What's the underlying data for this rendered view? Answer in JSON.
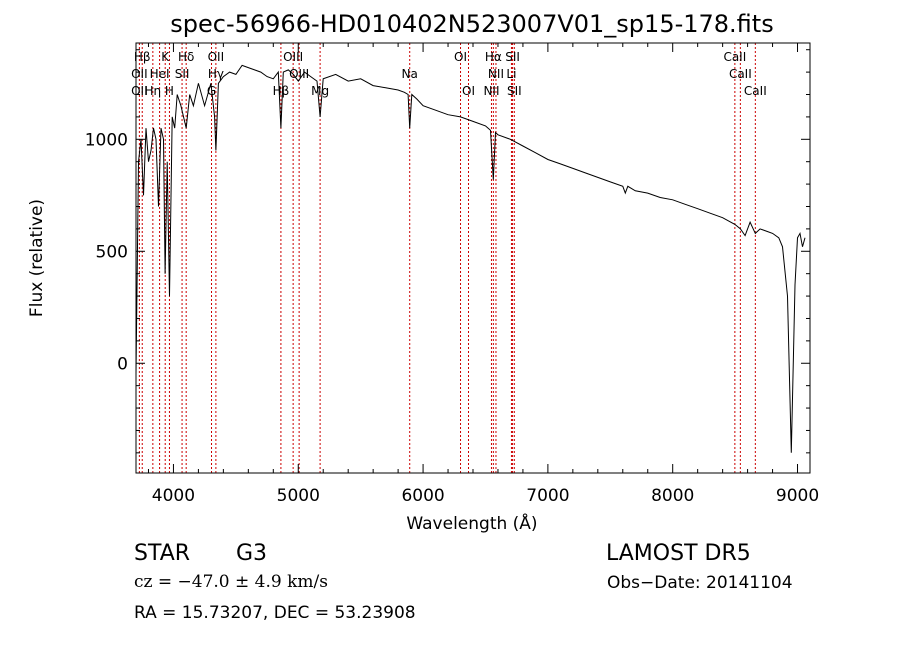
{
  "chart_data": {
    "type": "line",
    "title": "spec-56966-HD010402N523007V01_sp15-178.fits",
    "xlabel": "Wavelength (Å)",
    "ylabel": "Flux (relative)",
    "xlim": [
      3700,
      9100
    ],
    "ylim": [
      -490,
      1430
    ],
    "xticks": [
      "4000",
      "5000",
      "6000",
      "7000",
      "8000",
      "9000"
    ],
    "xtick_values": [
      4000,
      5000,
      6000,
      7000,
      8000,
      9000
    ],
    "yticks": [
      "0",
      "500",
      "1000"
    ],
    "ytick_values": [
      0,
      500,
      1000
    ],
    "grid": false,
    "series": [
      {
        "color": "#000000",
        "x": [
          3700,
          3720,
          3740,
          3760,
          3780,
          3800,
          3820,
          3840,
          3860,
          3880,
          3900,
          3920,
          3933,
          3950,
          3968,
          3990,
          4010,
          4030,
          4060,
          4102,
          4130,
          4160,
          4200,
          4250,
          4300,
          4330,
          4340,
          4360,
          4400,
          4450,
          4500,
          4550,
          4600,
          4650,
          4700,
          4750,
          4800,
          4840,
          4861,
          4880,
          4920,
          4960,
          5000,
          5050,
          5100,
          5150,
          5175,
          5200,
          5300,
          5400,
          5500,
          5600,
          5700,
          5800,
          5850,
          5880,
          5893,
          5910,
          5950,
          6000,
          6100,
          6200,
          6300,
          6400,
          6500,
          6540,
          6563,
          6580,
          6600,
          6700,
          6800,
          6900,
          7000,
          7100,
          7200,
          7300,
          7400,
          7500,
          7600,
          7620,
          7640,
          7700,
          7800,
          7900,
          8000,
          8100,
          8200,
          8300,
          8400,
          8498,
          8542,
          8580,
          8620,
          8662,
          8700,
          8750,
          8800,
          8850,
          8880,
          8920,
          8950,
          8980,
          9000,
          9020,
          9040,
          9060
        ],
        "y": [
          -50,
          900,
          1000,
          750,
          1050,
          900,
          950,
          1050,
          1000,
          700,
          1050,
          1000,
          400,
          900,
          300,
          1100,
          1050,
          1200,
          1150,
          1050,
          1200,
          1150,
          1250,
          1150,
          1250,
          1100,
          950,
          1250,
          1280,
          1300,
          1290,
          1330,
          1320,
          1310,
          1300,
          1280,
          1270,
          1300,
          1050,
          1300,
          1310,
          1290,
          1260,
          1300,
          1280,
          1260,
          1100,
          1270,
          1290,
          1260,
          1270,
          1240,
          1230,
          1220,
          1210,
          1200,
          1050,
          1200,
          1180,
          1150,
          1130,
          1110,
          1100,
          1080,
          1060,
          1040,
          820,
          1030,
          1020,
          1000,
          970,
          940,
          910,
          890,
          870,
          850,
          830,
          810,
          790,
          760,
          790,
          770,
          760,
          740,
          730,
          710,
          690,
          670,
          650,
          620,
          600,
          570,
          630,
          580,
          600,
          590,
          580,
          560,
          520,
          300,
          -400,
          350,
          560,
          580,
          520,
          560
        ]
      }
    ],
    "line_markers": [
      {
        "label": "Hβ",
        "x": 3750,
        "row": 0
      },
      {
        "label": "K",
        "x": 3934,
        "row": 0
      },
      {
        "label": "Hδ",
        "x": 4102,
        "row": 0
      },
      {
        "label": "OII",
        "x": 4340,
        "row": 0
      },
      {
        "label": "OIII",
        "x": 4959,
        "row": 0
      },
      {
        "label": "OI",
        "x": 6300,
        "row": 0
      },
      {
        "label": "Hα",
        "x": 6563,
        "row": 0
      },
      {
        "label": "SII",
        "x": 6717,
        "row": 0
      },
      {
        "label": "CaII",
        "x": 8498,
        "row": 0
      },
      {
        "label": "OII",
        "x": 3727,
        "row": 1
      },
      {
        "label": "HeI",
        "x": 3889,
        "row": 1
      },
      {
        "label": "SII",
        "x": 4069,
        "row": 1
      },
      {
        "label": "Hγ",
        "x": 4340,
        "row": 1
      },
      {
        "label": "OIII",
        "x": 5007,
        "row": 1
      },
      {
        "label": "Na",
        "x": 5893,
        "row": 1
      },
      {
        "label": "NII",
        "x": 6584,
        "row": 1
      },
      {
        "label": "Li",
        "x": 6708,
        "row": 1
      },
      {
        "label": "CaII",
        "x": 8542,
        "row": 1
      },
      {
        "label": "OII",
        "x": 3727,
        "row": 2
      },
      {
        "label": "Hη",
        "x": 3835,
        "row": 2
      },
      {
        "label": "H",
        "x": 3968,
        "row": 2
      },
      {
        "label": "G",
        "x": 4305,
        "row": 2
      },
      {
        "label": "Hβ",
        "x": 4861,
        "row": 2
      },
      {
        "label": "Mg",
        "x": 5175,
        "row": 2
      },
      {
        "label": "OI",
        "x": 6364,
        "row": 2
      },
      {
        "label": "NII",
        "x": 6548,
        "row": 2
      },
      {
        "label": "SII",
        "x": 6731,
        "row": 2
      },
      {
        "label": "CaII",
        "x": 8662,
        "row": 2
      }
    ]
  },
  "footer": {
    "object_class": "STAR",
    "subclass": "G3",
    "survey": "LAMOST DR5",
    "redshift": "cz = −47.0 ± 4.9 km/s",
    "obs_date": "Obs−Date: 20141104",
    "coords": "RA =  15.73207, DEC =  53.23908"
  }
}
